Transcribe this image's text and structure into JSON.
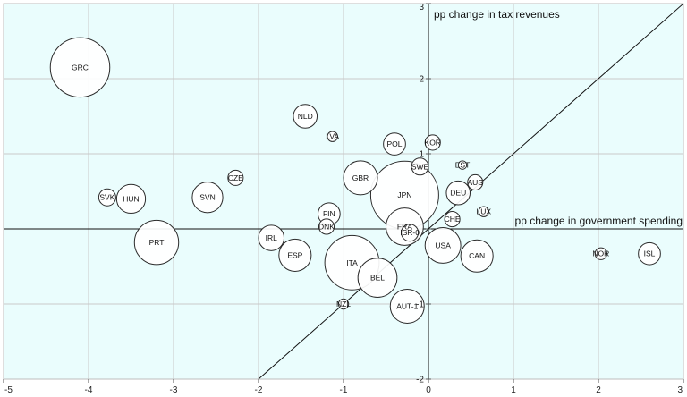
{
  "chart_data": {
    "type": "scatter",
    "title": "",
    "xlabel": "pp change in government spending",
    "ylabel": "pp change in tax revenues",
    "xlim": [
      -5,
      3
    ],
    "ylim": [
      -2,
      3
    ],
    "x_ticks": [
      "-5",
      "-4",
      "-3",
      "-2",
      "-1",
      "0",
      "1",
      "2",
      "3"
    ],
    "y_ticks": [
      "-2",
      "-1",
      "1",
      "2",
      "3"
    ],
    "grid": true,
    "diagonal_line": {
      "from": [
        -2,
        -2
      ],
      "to": [
        3,
        3
      ]
    },
    "colors": {
      "plot_background": "#eafdfd",
      "bubble_fill": "#ffffff",
      "bubble_stroke": "#2b2b2b",
      "axis": "#111111"
    },
    "points": [
      {
        "label": "GRC",
        "x": -4.1,
        "y": 2.15,
        "size": 17.5
      },
      {
        "label": "SVK",
        "x": -3.78,
        "y": 0.42,
        "size": 5
      },
      {
        "label": "HUN",
        "x": -3.5,
        "y": 0.4,
        "size": 8.5
      },
      {
        "label": "SVN",
        "x": -2.6,
        "y": 0.42,
        "size": 9
      },
      {
        "label": "CZE",
        "x": -2.27,
        "y": 0.68,
        "size": 4.5
      },
      {
        "label": "PRT",
        "x": -3.2,
        "y": -0.18,
        "size": 13
      },
      {
        "label": "IRL",
        "x": -1.85,
        "y": -0.12,
        "size": 7.5
      },
      {
        "label": "ESP",
        "x": -1.57,
        "y": -0.35,
        "size": 9.5
      },
      {
        "label": "NLD",
        "x": -1.45,
        "y": 1.5,
        "size": 7
      },
      {
        "label": "LVA",
        "x": -1.13,
        "y": 1.23,
        "size": 3
      },
      {
        "label": "FIN",
        "x": -1.17,
        "y": 0.2,
        "size": 6.5
      },
      {
        "label": "DNK",
        "x": -1.2,
        "y": 0.03,
        "size": 4.5
      },
      {
        "label": "ITA",
        "x": -0.9,
        "y": -0.45,
        "size": 16
      },
      {
        "label": "BEL",
        "x": -0.6,
        "y": -0.65,
        "size": 11.5
      },
      {
        "label": "NZL",
        "x": -1.0,
        "y": -1.0,
        "size": 3
      },
      {
        "label": "GBR",
        "x": -0.8,
        "y": 0.68,
        "size": 10
      },
      {
        "label": "POL",
        "x": -0.4,
        "y": 1.13,
        "size": 6.5
      },
      {
        "label": "JPN",
        "x": -0.28,
        "y": 0.45,
        "size": 20
      },
      {
        "label": "KOR",
        "x": 0.05,
        "y": 1.15,
        "size": 4.5
      },
      {
        "label": "SWE",
        "x": -0.1,
        "y": 0.83,
        "size": 5
      },
      {
        "label": "EST",
        "x": 0.4,
        "y": 0.85,
        "size": 2.5
      },
      {
        "label": "AUS",
        "x": 0.55,
        "y": 0.62,
        "size": 4.5
      },
      {
        "label": "DEU",
        "x": 0.35,
        "y": 0.48,
        "size": 7
      },
      {
        "label": "LUX",
        "x": 0.65,
        "y": 0.23,
        "size": 3
      },
      {
        "label": "CHE",
        "x": 0.28,
        "y": 0.13,
        "size": 4.5
      },
      {
        "label": "FRA",
        "x": -0.28,
        "y": 0.03,
        "size": 11
      },
      {
        "label": "ISR-0",
        "x": -0.22,
        "y": -0.05,
        "size": 5
      },
      {
        "label": "USA",
        "x": 0.17,
        "y": -0.22,
        "size": 10.5
      },
      {
        "label": "CAN",
        "x": 0.57,
        "y": -0.36,
        "size": 9.5
      },
      {
        "label": "AUT-1",
        "x": -0.25,
        "y": -1.03,
        "size": 10
      },
      {
        "label": "NOR",
        "x": 2.03,
        "y": -0.33,
        "size": 3.5
      },
      {
        "label": "ISL",
        "x": 2.6,
        "y": -0.33,
        "size": 6.5
      }
    ]
  }
}
